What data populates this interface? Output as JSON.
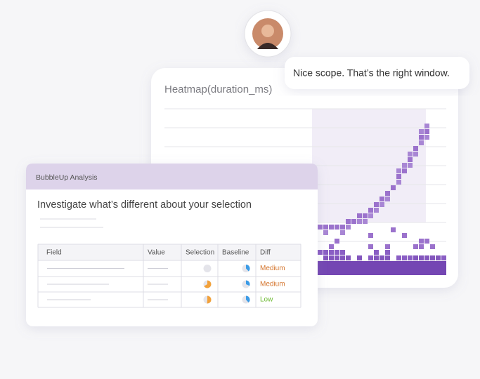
{
  "bubble": {
    "text": "Nice scope. That’s the right window."
  },
  "heatmap": {
    "title": "Heatmap(duration_ms)"
  },
  "bubbleup": {
    "header": "BubbleUp Analysis",
    "heading": "Investigate what’s different about your selection",
    "table": {
      "columns": [
        "Field",
        "Value",
        "Selection",
        "Baseline",
        "Diff"
      ],
      "diffs": [
        "Medium",
        "Medium",
        "Low"
      ]
    }
  }
}
